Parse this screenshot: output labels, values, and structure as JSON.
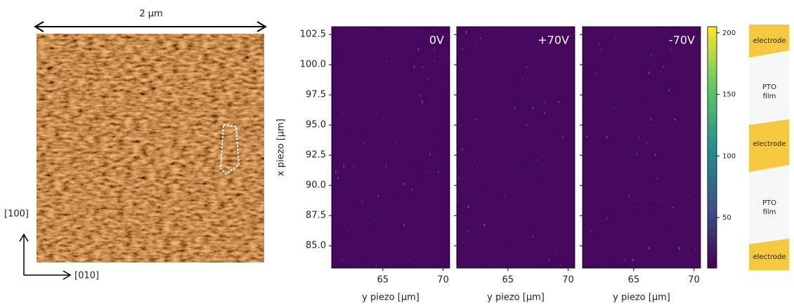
{
  "afm": {
    "scale_label": "2 μm",
    "vertical_label": "[100]",
    "horizontal_label": "[010]"
  },
  "maps": {
    "x_label": "y piezo [μm]",
    "y_label": "x piezo [μm]",
    "xlim": [
      60.75,
      70.55
    ],
    "ylim": [
      83.15,
      103.15
    ],
    "xticks": [
      65,
      70
    ],
    "yticks": [
      {
        "value": 85,
        "label": "85.0"
      },
      87.5,
      {
        "value": 90,
        "label": "90.0"
      },
      92.5,
      {
        "value": 95,
        "label": "95.0"
      },
      97.5,
      {
        "value": 100,
        "label": "100.0"
      },
      102.5
    ],
    "panels": [
      {
        "label": "0V"
      },
      {
        "label": "+70V"
      },
      {
        "label": "-70V"
      }
    ]
  },
  "colorbar": {
    "lim": [
      9,
      205
    ],
    "ticks": [
      50,
      100,
      150,
      200
    ]
  },
  "device": {
    "layers": [
      "electrode",
      "PTO film",
      "electrode",
      "PTO film",
      "electrode"
    ]
  }
}
